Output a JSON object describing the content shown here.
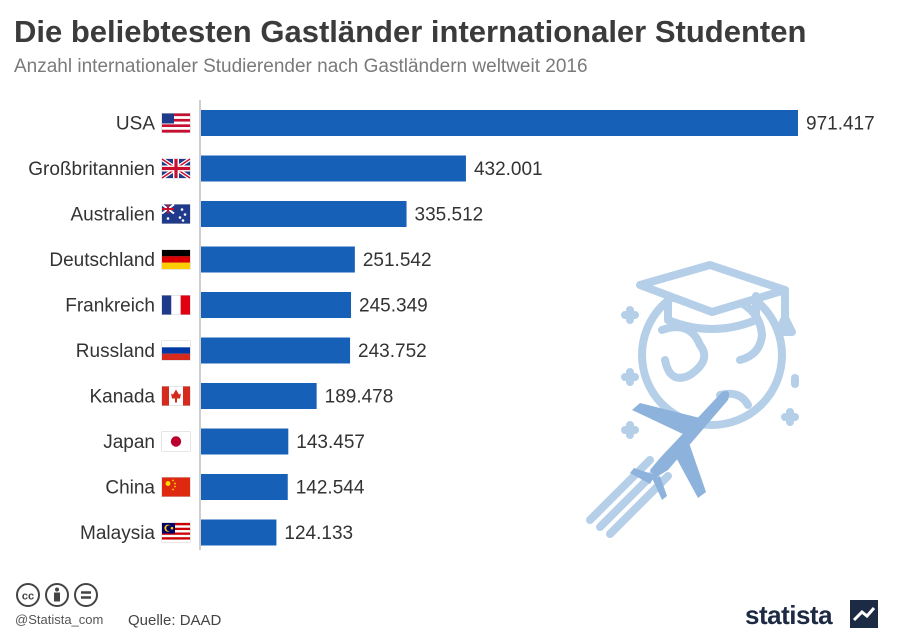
{
  "title": "Die beliebtesten Gastländer internationaler Studenten",
  "subtitle": "Anzahl internationaler Studierender nach Gastländern weltweit 2016",
  "footer": {
    "handle": "@Statista_com",
    "source": "Quelle: DAAD",
    "brand": "statista"
  },
  "colors": {
    "bar": "#1660b7",
    "axis": "#bdbdbd",
    "illustration": "#b5cfe9",
    "illustration_dark": "#8db3dc"
  },
  "chart_data": {
    "type": "bar",
    "orientation": "horizontal",
    "categories": [
      "USA",
      "Großbritannien",
      "Australien",
      "Deutschland",
      "Frankreich",
      "Russland",
      "Kanada",
      "Japan",
      "China",
      "Malaysia"
    ],
    "values": [
      971417,
      432001,
      335512,
      251542,
      245349,
      243752,
      189478,
      143457,
      142544,
      124133
    ],
    "value_labels": [
      "971.417",
      "432.001",
      "335.512",
      "251.542",
      "245.349",
      "243.752",
      "189.478",
      "143.457",
      "142.544",
      "124.133"
    ],
    "flags": [
      "us-flag-icon",
      "uk-flag-icon",
      "australia-flag-icon",
      "germany-flag-icon",
      "france-flag-icon",
      "russia-flag-icon",
      "canada-flag-icon",
      "japan-flag-icon",
      "china-flag-icon",
      "malaysia-flag-icon"
    ],
    "xlim": [
      0,
      971417
    ],
    "grid": false,
    "legend": "none"
  }
}
